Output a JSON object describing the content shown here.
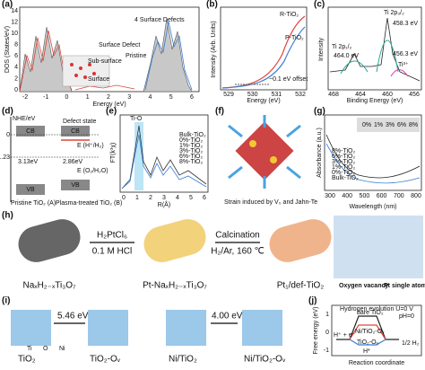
{
  "panels": {
    "a": {
      "label": "(a)",
      "y_axis": "DOS (States/eV)",
      "x_axis": "Energy (eV)",
      "x_ticks": [
        -2,
        -1,
        0,
        1,
        2,
        3,
        4,
        5,
        6
      ],
      "y_ticks": [
        0,
        2,
        4,
        6,
        8,
        10,
        12,
        14
      ],
      "legend": [
        "4 Surface Defects",
        "Surface Defect",
        "Pristine"
      ],
      "inset": [
        "Sub-surface",
        "Surface"
      ]
    },
    "b": {
      "label": "(b)",
      "y_axis": "Intensity (Arb. Units)",
      "x_axis": "Energy (eV)",
      "x_ticks": [
        529,
        530,
        531,
        532
      ],
      "series": [
        "R-TiO₂",
        "P-TiO₂"
      ],
      "annotation": "~0.1 eV offset"
    },
    "c": {
      "label": "(c)",
      "y_axis": "Intensity",
      "x_axis": "Binding Energy (eV)",
      "x_ticks": [
        468,
        464,
        460,
        456
      ],
      "peaks": [
        "Ti 2p₃/₂",
        "458.3 eV",
        "Ti 2p₁/₂",
        "464.0 eV",
        "456.3 eV",
        "Ti³⁺"
      ]
    },
    "d": {
      "label": "(d)",
      "y_axis": "NHE/eV",
      "y_ticks": [
        0,
        1.23
      ],
      "bands": [
        "CB",
        "VB",
        "CB",
        "VB"
      ],
      "gaps": [
        "3.13eV",
        "2.86eV"
      ],
      "defect": "Defect state",
      "levels": [
        "E (H⁺/H₂)",
        "E (O₂/H₂O)"
      ],
      "captions": [
        "Pristine TiO₂ (A)",
        "Plasma-treated TiO₂ (B)"
      ]
    },
    "e": {
      "label": "(e)",
      "y_axis": "FT(k³χ)",
      "x_axis": "R(Å)",
      "x_ticks": [
        0,
        1,
        2,
        3,
        4,
        5,
        6
      ],
      "peak": "Ti-O",
      "legend": [
        "Bulk-TiO₂",
        "0%-TiO₂",
        "1%-TiO₂",
        "3%-TiO₂",
        "6%-TiO₂",
        "8%-TiO₂"
      ]
    },
    "f": {
      "label": "(f)",
      "caption": "Strain induced by V₀ and Jahn-Te"
    },
    "g": {
      "label": "(g)",
      "y_axis": "Absorbance (a.u.)",
      "x_axis": "Wavelength (nm)",
      "x_ticks": [
        300,
        400,
        500,
        600,
        700,
        800
      ],
      "legend": [
        "8%-TiO₂",
        "6%-TiO₂",
        "3%-TiO₂",
        "1%-TiO₂",
        "0%-TiO₂",
        "Bulk-TiO₂"
      ],
      "photos": [
        "0%",
        "1%",
        "3%",
        "6%",
        "8%"
      ]
    },
    "h": {
      "label": "(h)",
      "step1": [
        "H₂PtCl₆",
        "0.1 M HCl"
      ],
      "step2": [
        "Calcination",
        "H₂/Ar, 160 ℃"
      ],
      "materials": [
        "NaₓH₂₋ₓTi₃O₇",
        "Pt-NaₓH₂₋ₓTi₃O₇",
        "Pt₁/def-TiO₂"
      ],
      "callouts": [
        "Oxygen vacancy",
        "Pt single atom"
      ]
    },
    "i": {
      "label": "(i)",
      "energies": [
        "5.46 eV",
        "4.00 eV"
      ],
      "structures": [
        "TiO₂",
        "TiO₂-Oᵥ",
        "Ni/TiO₂",
        "Ni/TiO₂-Oᵥ"
      ],
      "legend": [
        "Ti",
        "O",
        "Ni"
      ]
    },
    "j": {
      "label": "(j)",
      "y_axis": "Free energy (eV)",
      "x_axis": "Reaction coordinate",
      "title": "Hydrogen evolution U=0 V",
      "subtitle": "pH=0",
      "y_ticks": [
        1,
        0,
        -1
      ],
      "curves": [
        "bare TiO₂",
        "Ni/TiO₂-Oᵥ",
        "TiO₂-Oᵥ"
      ],
      "states": [
        "H⁺ + e⁻",
        "1/2 H₂",
        "H*"
      ]
    }
  }
}
